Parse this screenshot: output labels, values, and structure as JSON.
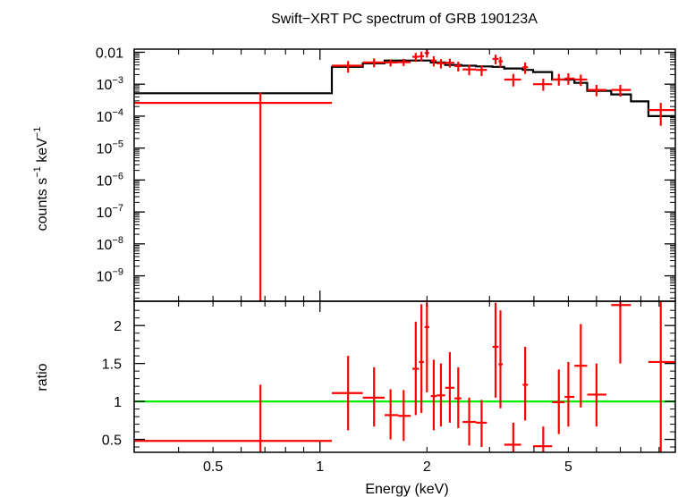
{
  "chart_data": [
    {
      "type": "scatter",
      "panel": "spectrum",
      "title": "Swift−XRT PC spectrum of GRB 190123A",
      "ylabel_parts": {
        "base": "counts s",
        "exp1": "−1",
        "mid": " keV",
        "exp2": "−1"
      },
      "xscale": "log",
      "yscale": "log",
      "xlim": [
        0.3,
        10
      ],
      "ylim": [
        1.6e-10,
        0.0125
      ],
      "ytick_labels": [
        {
          "value": 0.01,
          "base": "0.01",
          "exp": ""
        },
        {
          "value": 0.001,
          "base": "10",
          "exp": "−3"
        },
        {
          "value": 0.0001,
          "base": "10",
          "exp": "−4"
        },
        {
          "value": 1e-05,
          "base": "10",
          "exp": "−5"
        },
        {
          "value": 1e-06,
          "base": "10",
          "exp": "−6"
        },
        {
          "value": 1e-07,
          "base": "10",
          "exp": "−7"
        },
        {
          "value": 1e-08,
          "base": "10",
          "exp": "−8"
        },
        {
          "value": 1e-09,
          "base": "10",
          "exp": "−9"
        }
      ],
      "series": [
        {
          "kind": "data",
          "color": "#ff0000",
          "points": [
            {
              "x": 0.68,
              "xlo": 0.3,
              "xhi": 1.08,
              "y": 0.00026,
              "ylo": 1e-10,
              "yhi": 0.00055
            },
            {
              "x": 1.2,
              "xlo": 1.08,
              "xhi": 1.32,
              "y": 0.0038,
              "ylo": 0.0023,
              "yhi": 0.0053
            },
            {
              "x": 1.42,
              "xlo": 1.32,
              "xhi": 1.52,
              "y": 0.0048,
              "ylo": 0.0034,
              "yhi": 0.0064
            },
            {
              "x": 1.58,
              "xlo": 1.52,
              "xhi": 1.66,
              "y": 0.0048,
              "ylo": 0.0036,
              "yhi": 0.006
            },
            {
              "x": 1.72,
              "xlo": 1.66,
              "xhi": 1.8,
              "y": 0.0049,
              "ylo": 0.0037,
              "yhi": 0.0062
            },
            {
              "x": 1.86,
              "xlo": 1.82,
              "xhi": 1.9,
              "y": 0.0072,
              "ylo": 0.005,
              "yhi": 0.0095
            },
            {
              "x": 1.93,
              "xlo": 1.9,
              "xhi": 1.96,
              "y": 0.0075,
              "ylo": 0.0052,
              "yhi": 0.0105
            },
            {
              "x": 2.0,
              "xlo": 1.97,
              "xhi": 2.03,
              "y": 0.0095,
              "ylo": 0.0068,
              "yhi": 0.0125
            },
            {
              "x": 2.09,
              "xlo": 2.05,
              "xhi": 2.13,
              "y": 0.0055,
              "ylo": 0.0036,
              "yhi": 0.0075
            },
            {
              "x": 2.19,
              "xlo": 2.13,
              "xhi": 2.25,
              "y": 0.0045,
              "ylo": 0.0031,
              "yhi": 0.0061
            },
            {
              "x": 2.32,
              "xlo": 2.25,
              "xhi": 2.39,
              "y": 0.0047,
              "ylo": 0.0033,
              "yhi": 0.0063
            },
            {
              "x": 2.45,
              "xlo": 2.39,
              "xhi": 2.5,
              "y": 0.0037,
              "ylo": 0.0025,
              "yhi": 0.0051
            },
            {
              "x": 2.63,
              "xlo": 2.52,
              "xhi": 2.75,
              "y": 0.0029,
              "ylo": 0.0019,
              "yhi": 0.0041
            },
            {
              "x": 2.85,
              "xlo": 2.75,
              "xhi": 2.95,
              "y": 0.0028,
              "ylo": 0.0018,
              "yhi": 0.0039
            },
            {
              "x": 3.12,
              "xlo": 3.06,
              "xhi": 3.18,
              "y": 0.0062,
              "ylo": 0.0042,
              "yhi": 0.0084
            },
            {
              "x": 3.22,
              "xlo": 3.18,
              "xhi": 3.27,
              "y": 0.0052,
              "ylo": 0.0034,
              "yhi": 0.0072
            },
            {
              "x": 3.5,
              "xlo": 3.3,
              "xhi": 3.68,
              "y": 0.0014,
              "ylo": 0.00085,
              "yhi": 0.0021
            },
            {
              "x": 3.78,
              "xlo": 3.72,
              "xhi": 3.85,
              "y": 0.0034,
              "ylo": 0.0021,
              "yhi": 0.0048
            },
            {
              "x": 4.25,
              "xlo": 3.98,
              "xhi": 4.5,
              "y": 0.001,
              "ylo": 0.00062,
              "yhi": 0.0015
            },
            {
              "x": 4.7,
              "xlo": 4.5,
              "xhi": 4.88,
              "y": 0.0014,
              "ylo": 0.0009,
              "yhi": 0.0021
            },
            {
              "x": 5.0,
              "xlo": 4.88,
              "xhi": 5.2,
              "y": 0.0015,
              "ylo": 0.00096,
              "yhi": 0.0022
            },
            {
              "x": 5.42,
              "xlo": 5.2,
              "xhi": 5.65,
              "y": 0.0014,
              "ylo": 0.00088,
              "yhi": 0.002
            },
            {
              "x": 6.0,
              "xlo": 5.65,
              "xhi": 6.4,
              "y": 0.00066,
              "ylo": 0.00042,
              "yhi": 0.00095
            },
            {
              "x": 7.0,
              "xlo": 6.6,
              "xhi": 7.5,
              "y": 0.00066,
              "ylo": 0.00041,
              "yhi": 0.00095
            },
            {
              "x": 9.1,
              "xlo": 8.4,
              "xhi": 10.0,
              "y": 0.000155,
              "ylo": 5e-05,
              "yhi": 0.00026
            }
          ]
        },
        {
          "kind": "model",
          "color": "#000000",
          "steps": [
            {
              "xlo": 0.3,
              "xhi": 1.08,
              "y": 0.00052
            },
            {
              "xlo": 1.08,
              "xhi": 1.32,
              "y": 0.0035
            },
            {
              "xlo": 1.32,
              "xhi": 1.52,
              "y": 0.0045
            },
            {
              "xlo": 1.52,
              "xhi": 1.8,
              "y": 0.0055
            },
            {
              "xlo": 1.8,
              "xhi": 2.05,
              "y": 0.0055
            },
            {
              "xlo": 2.05,
              "xhi": 2.25,
              "y": 0.0048
            },
            {
              "xlo": 2.25,
              "xhi": 2.5,
              "y": 0.004
            },
            {
              "xlo": 2.5,
              "xhi": 2.75,
              "y": 0.0038
            },
            {
              "xlo": 2.75,
              "xhi": 3.06,
              "y": 0.0036
            },
            {
              "xlo": 3.06,
              "xhi": 3.3,
              "y": 0.0035
            },
            {
              "xlo": 3.3,
              "xhi": 3.72,
              "y": 0.0031
            },
            {
              "xlo": 3.72,
              "xhi": 3.98,
              "y": 0.0028
            },
            {
              "xlo": 3.98,
              "xhi": 4.5,
              "y": 0.0024
            },
            {
              "xlo": 4.5,
              "xhi": 5.2,
              "y": 0.0014
            },
            {
              "xlo": 5.2,
              "xhi": 5.65,
              "y": 0.0011
            },
            {
              "xlo": 5.65,
              "xhi": 6.6,
              "y": 0.00062
            },
            {
              "xlo": 6.6,
              "xhi": 7.5,
              "y": 0.00048
            },
            {
              "xlo": 7.5,
              "xhi": 8.4,
              "y": 0.00029
            },
            {
              "xlo": 8.4,
              "xhi": 10.0,
              "y": 0.0001
            }
          ]
        }
      ]
    },
    {
      "type": "scatter",
      "panel": "ratio",
      "xlabel": "Energy (keV)",
      "ylabel": "ratio",
      "xscale": "log",
      "yscale": "linear",
      "xlim": [
        0.3,
        10
      ],
      "ylim": [
        0.33,
        2.32
      ],
      "reference_line": {
        "y": 1,
        "color": "#00ee00"
      },
      "xtick_labels": [
        {
          "value": 0.5,
          "label": "0.5"
        },
        {
          "value": 1,
          "label": "1"
        },
        {
          "value": 2,
          "label": "2"
        },
        {
          "value": 5,
          "label": "5"
        }
      ],
      "ytick_labels": [
        {
          "value": 0.5,
          "label": "0.5"
        },
        {
          "value": 1,
          "label": "1"
        },
        {
          "value": 1.5,
          "label": "1.5"
        },
        {
          "value": 2,
          "label": "2"
        }
      ],
      "series": [
        {
          "kind": "data",
          "color": "#ff0000",
          "points": [
            {
              "x": 0.68,
              "xlo": 0.3,
              "xhi": 1.08,
              "y": 0.48,
              "ylo": 0.3,
              "yhi": 1.22
            },
            {
              "x": 1.2,
              "xlo": 1.08,
              "xhi": 1.32,
              "y": 1.11,
              "ylo": 0.62,
              "yhi": 1.6
            },
            {
              "x": 1.42,
              "xlo": 1.32,
              "xhi": 1.52,
              "y": 1.05,
              "ylo": 0.67,
              "yhi": 1.45
            },
            {
              "x": 1.58,
              "xlo": 1.52,
              "xhi": 1.66,
              "y": 0.82,
              "ylo": 0.5,
              "yhi": 1.16
            },
            {
              "x": 1.72,
              "xlo": 1.66,
              "xhi": 1.8,
              "y": 0.81,
              "ylo": 0.48,
              "yhi": 1.15
            },
            {
              "x": 1.86,
              "xlo": 1.82,
              "xhi": 1.9,
              "y": 1.43,
              "ylo": 0.82,
              "yhi": 2.05
            },
            {
              "x": 1.93,
              "xlo": 1.9,
              "xhi": 1.96,
              "y": 1.52,
              "ylo": 0.85,
              "yhi": 2.28
            },
            {
              "x": 2.0,
              "xlo": 1.97,
              "xhi": 2.03,
              "y": 1.98,
              "ylo": 1.12,
              "yhi": 2.3
            },
            {
              "x": 2.09,
              "xlo": 2.05,
              "xhi": 2.13,
              "y": 1.07,
              "ylo": 0.62,
              "yhi": 1.55
            },
            {
              "x": 2.19,
              "xlo": 2.13,
              "xhi": 2.25,
              "y": 1.08,
              "ylo": 0.67,
              "yhi": 1.5
            },
            {
              "x": 2.32,
              "xlo": 2.25,
              "xhi": 2.39,
              "y": 1.18,
              "ylo": 0.72,
              "yhi": 1.65
            },
            {
              "x": 2.45,
              "xlo": 2.39,
              "xhi": 2.5,
              "y": 1.04,
              "ylo": 0.65,
              "yhi": 1.45
            },
            {
              "x": 2.63,
              "xlo": 2.52,
              "xhi": 2.75,
              "y": 0.73,
              "ylo": 0.42,
              "yhi": 1.05
            },
            {
              "x": 2.85,
              "xlo": 2.75,
              "xhi": 2.95,
              "y": 0.72,
              "ylo": 0.4,
              "yhi": 1.02
            },
            {
              "x": 3.12,
              "xlo": 3.06,
              "xhi": 3.18,
              "y": 1.72,
              "ylo": 1.05,
              "yhi": 2.3
            },
            {
              "x": 3.22,
              "xlo": 3.18,
              "xhi": 3.27,
              "y": 1.49,
              "ylo": 0.91,
              "yhi": 2.2
            },
            {
              "x": 3.5,
              "xlo": 3.3,
              "xhi": 3.68,
              "y": 0.43,
              "ylo": 0.33,
              "yhi": 0.72
            },
            {
              "x": 3.78,
              "xlo": 3.72,
              "xhi": 3.85,
              "y": 1.22,
              "ylo": 0.75,
              "yhi": 1.72
            },
            {
              "x": 4.25,
              "xlo": 3.98,
              "xhi": 4.5,
              "y": 0.41,
              "ylo": 0.33,
              "yhi": 0.67
            },
            {
              "x": 4.7,
              "xlo": 4.5,
              "xhi": 4.88,
              "y": 0.99,
              "ylo": 0.57,
              "yhi": 1.42
            },
            {
              "x": 5.0,
              "xlo": 4.88,
              "xhi": 5.2,
              "y": 1.06,
              "ylo": 0.67,
              "yhi": 1.52
            },
            {
              "x": 5.42,
              "xlo": 5.2,
              "xhi": 5.65,
              "y": 1.47,
              "ylo": 0.92,
              "yhi": 2.02
            },
            {
              "x": 6.0,
              "xlo": 5.65,
              "xhi": 6.4,
              "y": 1.09,
              "ylo": 0.67,
              "yhi": 1.5
            },
            {
              "x": 7.0,
              "xlo": 6.6,
              "xhi": 7.5,
              "y": 2.27,
              "ylo": 1.5,
              "yhi": 2.32
            },
            {
              "x": 9.1,
              "xlo": 8.4,
              "xhi": 10.0,
              "y": 1.52,
              "ylo": 0.33,
              "yhi": 2.32
            }
          ]
        }
      ]
    }
  ]
}
